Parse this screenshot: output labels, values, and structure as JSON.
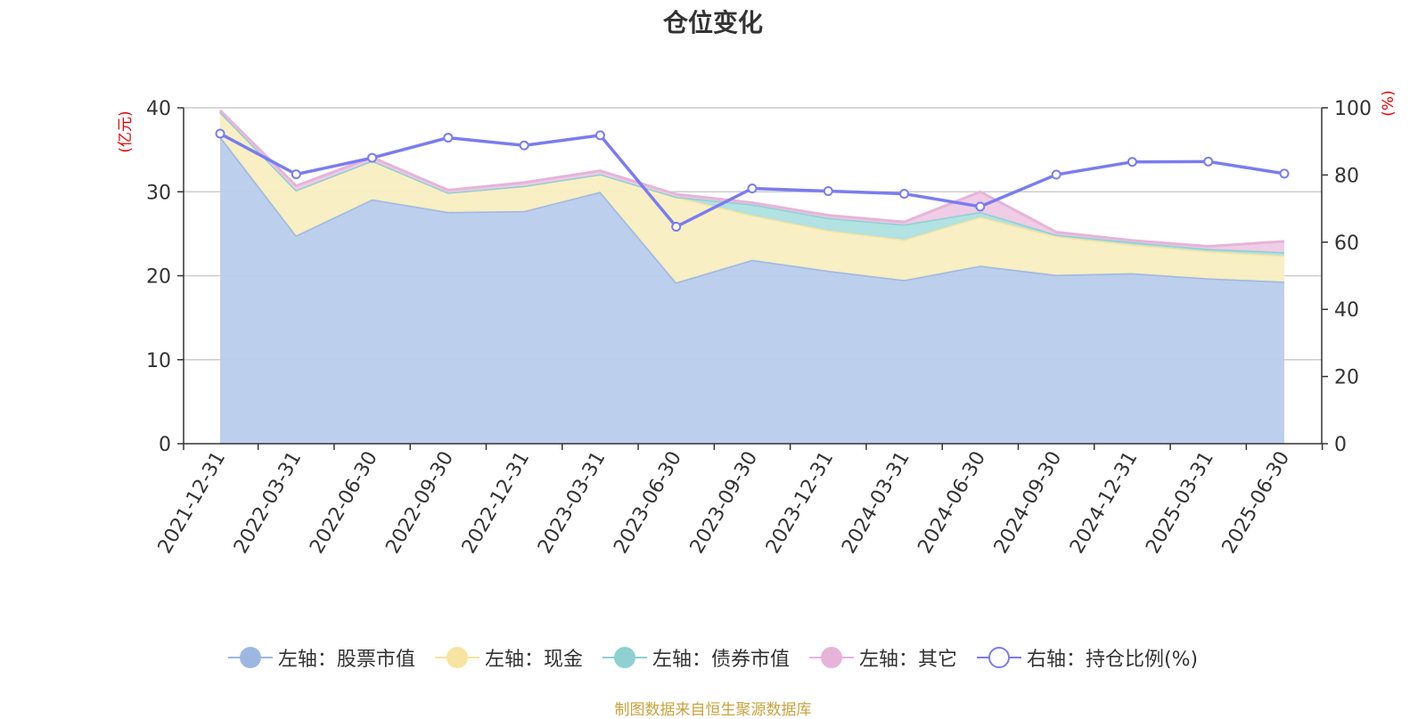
{
  "title": "仓位变化",
  "source_note": "制图数据来自恒生聚源数据库",
  "chart_data": {
    "type": "area",
    "categories": [
      "2021-12-31",
      "2022-03-31",
      "2022-06-30",
      "2022-09-30",
      "2022-12-31",
      "2023-03-31",
      "2023-06-30",
      "2023-09-30",
      "2023-12-31",
      "2024-03-31",
      "2024-06-30",
      "2024-09-30",
      "2024-12-31",
      "2025-03-31",
      "2025-06-30"
    ],
    "left_axis": {
      "label": "(亿元)",
      "ylim": [
        0,
        40
      ],
      "ticks": [
        0,
        10,
        20,
        30,
        40
      ]
    },
    "right_axis": {
      "label": "(%)",
      "ylim": [
        0,
        100
      ],
      "ticks": [
        0,
        20,
        40,
        60,
        80,
        100
      ]
    },
    "stacked": true,
    "grid": true,
    "legend_position": "bottom",
    "series": [
      {
        "name": "左轴：股票市值",
        "axis": "left",
        "color": "#9db8e0",
        "fill": "#b8cceb",
        "values": [
          36.6,
          24.8,
          29.1,
          27.6,
          27.7,
          30.0,
          19.2,
          21.9,
          20.6,
          19.5,
          21.2,
          20.1,
          20.3,
          19.7,
          19.3
        ]
      },
      {
        "name": "左轴：现金",
        "axis": "left",
        "color": "#f6e4a0",
        "fill": "#f9eec2",
        "values": [
          2.9,
          5.4,
          4.6,
          2.3,
          3.0,
          2.1,
          10.2,
          5.3,
          4.8,
          4.8,
          5.8,
          4.6,
          3.4,
          3.2,
          3.1
        ]
      },
      {
        "name": "左轴：债券市值",
        "axis": "left",
        "color": "#8fd0d0",
        "fill": "#aee0e0",
        "values": [
          0,
          0,
          0,
          0,
          0,
          0,
          0,
          1.3,
          1.5,
          1.8,
          0.6,
          0.2,
          0.3,
          0.3,
          0.4
        ]
      },
      {
        "name": "左轴：其它",
        "axis": "left",
        "color": "#e6b4da",
        "fill": "#efcae6",
        "values": [
          0.2,
          0.5,
          0.4,
          0.3,
          0.4,
          0.4,
          0.3,
          0.2,
          0.3,
          0.3,
          2.4,
          0.3,
          0.2,
          0.3,
          1.3
        ]
      },
      {
        "name": "右轴：持仓比例(%)",
        "axis": "right",
        "color": "#7a7cf0",
        "type": "line",
        "values": [
          92.3,
          80.2,
          85.1,
          91.1,
          88.8,
          91.8,
          64.6,
          76.0,
          75.2,
          74.4,
          70.6,
          80.1,
          83.9,
          84.0,
          80.4
        ]
      }
    ]
  }
}
